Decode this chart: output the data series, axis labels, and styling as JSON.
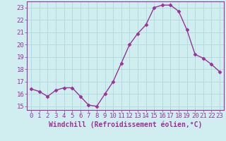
{
  "x": [
    0,
    1,
    2,
    3,
    4,
    5,
    6,
    7,
    8,
    9,
    10,
    11,
    12,
    13,
    14,
    15,
    16,
    17,
    18,
    19,
    20,
    21,
    22,
    23
  ],
  "y": [
    16.4,
    16.2,
    15.8,
    16.3,
    16.5,
    16.5,
    15.8,
    15.1,
    15.0,
    16.0,
    17.0,
    18.5,
    20.0,
    20.9,
    21.6,
    23.0,
    23.2,
    23.2,
    22.7,
    21.2,
    19.2,
    18.9,
    18.4,
    17.8
  ],
  "line_color": "#993399",
  "marker": "D",
  "markersize": 2.5,
  "linewidth": 1.0,
  "xlabel": "Windchill (Refroidissement éolien,°C)",
  "xlabel_fontsize": 7,
  "xlim": [
    -0.5,
    23.5
  ],
  "ylim": [
    14.7,
    23.5
  ],
  "yticks": [
    15,
    16,
    17,
    18,
    19,
    20,
    21,
    22,
    23
  ],
  "xticks": [
    0,
    1,
    2,
    3,
    4,
    5,
    6,
    7,
    8,
    9,
    10,
    11,
    12,
    13,
    14,
    15,
    16,
    17,
    18,
    19,
    20,
    21,
    22,
    23
  ],
  "background_color": "#d0eef0",
  "grid_color": "#b0d8dc",
  "tick_fontsize": 6.5,
  "tick_color": "#993399",
  "spine_color": "#993399",
  "fig_width": 3.2,
  "fig_height": 2.0,
  "dpi": 100
}
